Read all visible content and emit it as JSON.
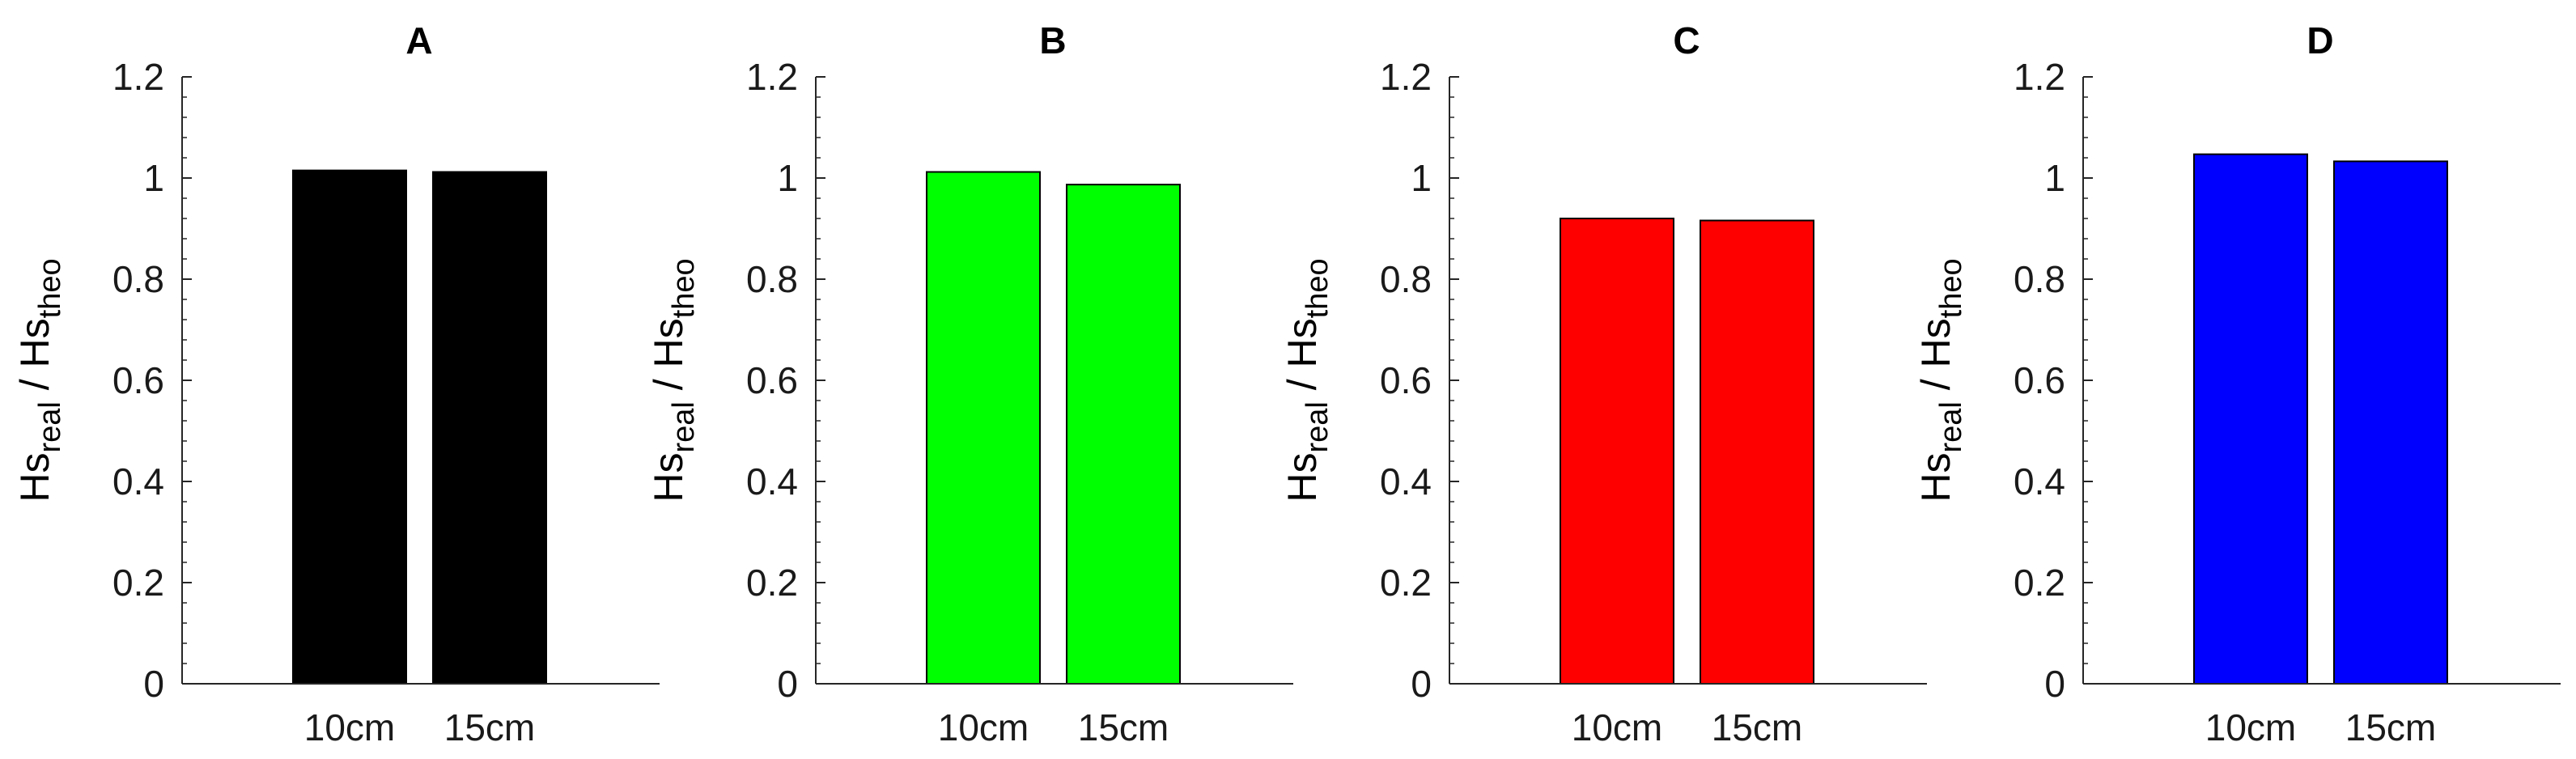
{
  "chart_data": [
    {
      "type": "bar",
      "title": "A",
      "categories": [
        "10cm",
        "15cm"
      ],
      "values": [
        1.015,
        1.012
      ],
      "color": "#000000",
      "ylabel_main": "Hs",
      "ylabel_sub1": "real",
      "ylabel_mid": " / Hs",
      "ylabel_sub2": "theo",
      "ylim": [
        0,
        1.2
      ],
      "yticks": [
        "0",
        "0.2",
        "0.4",
        "0.6",
        "0.8",
        "1",
        "1.2"
      ]
    },
    {
      "type": "bar",
      "title": "B",
      "categories": [
        "10cm",
        "15cm"
      ],
      "values": [
        1.012,
        0.987
      ],
      "color": "#00ff00",
      "ylabel_main": "Hs",
      "ylabel_sub1": "real",
      "ylabel_mid": " / Hs",
      "ylabel_sub2": "theo",
      "ylim": [
        0,
        1.2
      ],
      "yticks": [
        "0",
        "0.2",
        "0.4",
        "0.6",
        "0.8",
        "1",
        "1.2"
      ]
    },
    {
      "type": "bar",
      "title": "C",
      "categories": [
        "10cm",
        "15cm"
      ],
      "values": [
        0.92,
        0.916
      ],
      "color": "#ff0000",
      "ylabel_main": "Hs",
      "ylabel_sub1": "real",
      "ylabel_mid": " / Hs",
      "ylabel_sub2": "theo",
      "ylim": [
        0,
        1.2
      ],
      "yticks": [
        "0",
        "0.2",
        "0.4",
        "0.6",
        "0.8",
        "1",
        "1.2"
      ]
    },
    {
      "type": "bar",
      "title": "D",
      "categories": [
        "10cm",
        "15cm"
      ],
      "values": [
        1.047,
        1.033
      ],
      "color": "#0000ff",
      "ylabel_main": "Hs",
      "ylabel_sub1": "real",
      "ylabel_mid": " / Hs",
      "ylabel_sub2": "theo",
      "ylim": [
        0,
        1.2
      ],
      "yticks": [
        "0",
        "0.2",
        "0.4",
        "0.6",
        "0.8",
        "1",
        "1.2"
      ]
    }
  ]
}
